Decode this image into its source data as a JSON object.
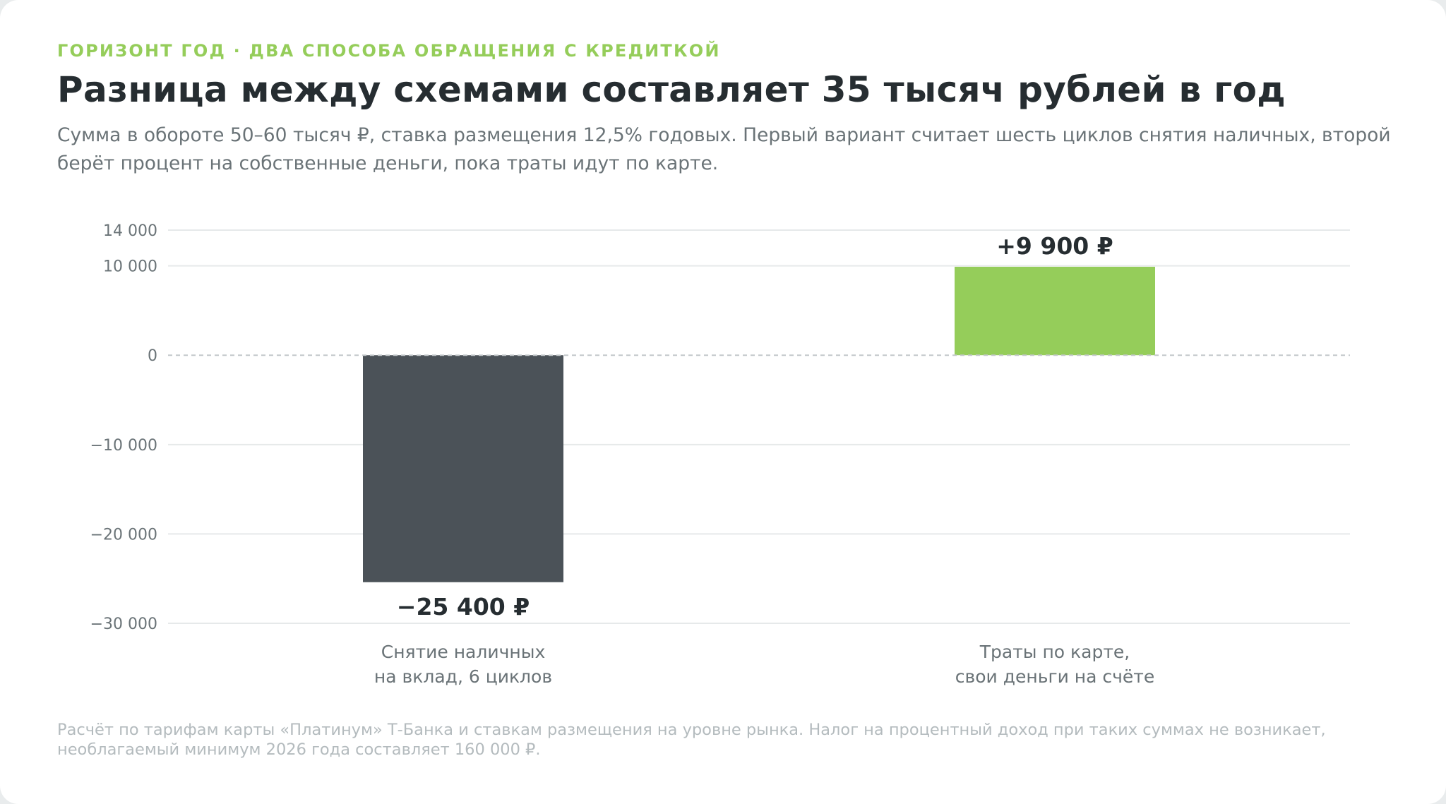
{
  "header": {
    "eyebrow": "ГОРИЗОНТ ГОД · ДВА СПОСОБА ОБРАЩЕНИЯ С КРЕДИТКОЙ",
    "title": "Разница между схемами составляет 35 тысяч рублей в год",
    "subtitle": "Сумма в обороте 50–60 тысяч ₽, ставка размещения 12,5% годовых. Первый вариант считает шесть циклов снятия наличных, второй берёт процент на собственные деньги, пока траты идут по карте."
  },
  "footnote": "Расчёт по тарифам карты «Платинум» Т-Банка и ставкам размещения на уровне рынка. Налог на процентный доход при таких суммах не возникает, необлагаемый минимум 2026 года составляет 160 000 ₽.",
  "chart_data": {
    "type": "bar",
    "categories": [
      [
        "Снятие наличных",
        "на вклад, 6 циклов"
      ],
      [
        "Траты по карте,",
        "свои деньги на счёте"
      ]
    ],
    "values": [
      -25400,
      9900
    ],
    "value_labels": [
      "−25 400 ₽",
      "+9 900 ₽"
    ],
    "bar_colors": [
      "#4b5258",
      "#95cd5a"
    ],
    "y_ticks": [
      {
        "value": 14000,
        "label": "14 000"
      },
      {
        "value": 10000,
        "label": "10 000"
      },
      {
        "value": 0,
        "label": "0"
      },
      {
        "value": -10000,
        "label": "−10 000"
      },
      {
        "value": -20000,
        "label": "−20 000"
      },
      {
        "value": -30000,
        "label": "−30 000"
      }
    ],
    "ylim": [
      -30000,
      14000
    ],
    "grid": true,
    "zero_line": "dashed"
  }
}
